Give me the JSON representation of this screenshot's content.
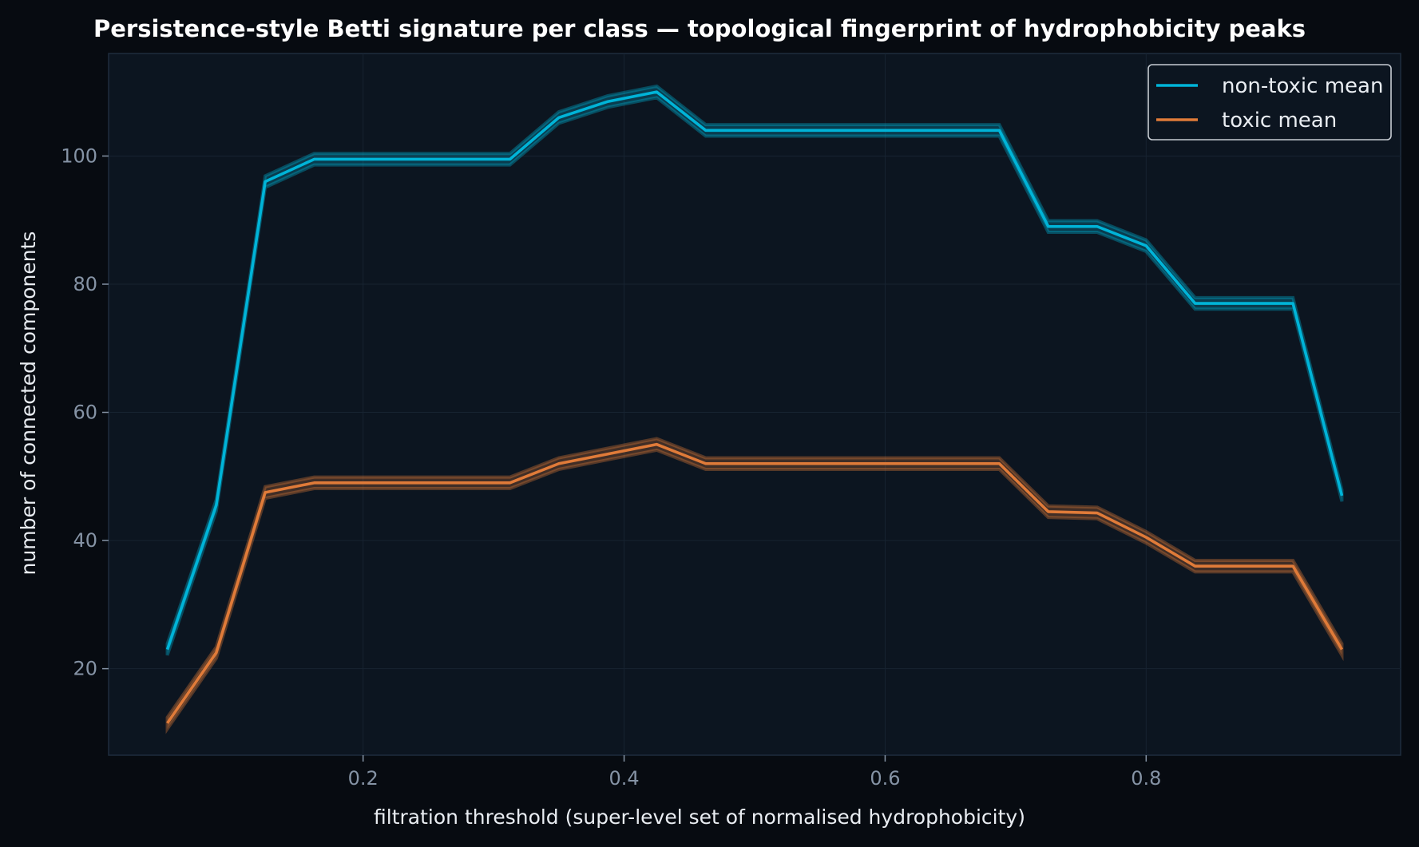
{
  "chart_data": {
    "type": "line",
    "title": "Persistence-style Betti signature per class — topological fingerprint of hydrophobicity peaks",
    "xlabel": "filtration threshold  (super-level set of normalised hydrophobicity)",
    "ylabel": "number of connected components",
    "xlim": [
      0.005,
      0.995
    ],
    "ylim": [
      6.5,
      116
    ],
    "xticks": [
      0.2,
      0.4,
      0.6,
      0.8
    ],
    "xtick_labels": [
      "0.2",
      "0.4",
      "0.6",
      "0.8"
    ],
    "yticks": [
      20,
      40,
      60,
      80,
      100
    ],
    "ytick_labels": [
      "20",
      "40",
      "60",
      "80",
      "100"
    ],
    "grid": true,
    "legend_position": "top-right",
    "x": [
      0.05,
      0.0875,
      0.125,
      0.1625,
      0.2,
      0.2375,
      0.275,
      0.3125,
      0.35,
      0.3875,
      0.425,
      0.4625,
      0.5,
      0.5375,
      0.575,
      0.6125,
      0.65,
      0.6875,
      0.725,
      0.7625,
      0.8,
      0.8375,
      0.875,
      0.9125,
      0.95
    ],
    "series": [
      {
        "name": "non-toxic mean",
        "color": "#00b4d8",
        "values": [
          23,
          45.5,
          96,
          99.5,
          99.5,
          99.5,
          99.5,
          99.5,
          106,
          108.5,
          110,
          104,
          104,
          104,
          104,
          104,
          104,
          104,
          89,
          89,
          86,
          77,
          77,
          77,
          47
        ],
        "band": 0.9
      },
      {
        "name": "toxic mean",
        "color": "#e07b39",
        "values": [
          11.5,
          22.5,
          47.5,
          49,
          49,
          49,
          49,
          49,
          52,
          53.5,
          55,
          52,
          52,
          52,
          52,
          52,
          52,
          52,
          44.5,
          44.3,
          40.5,
          36,
          36,
          36,
          23
        ],
        "band": 0.9
      }
    ]
  }
}
